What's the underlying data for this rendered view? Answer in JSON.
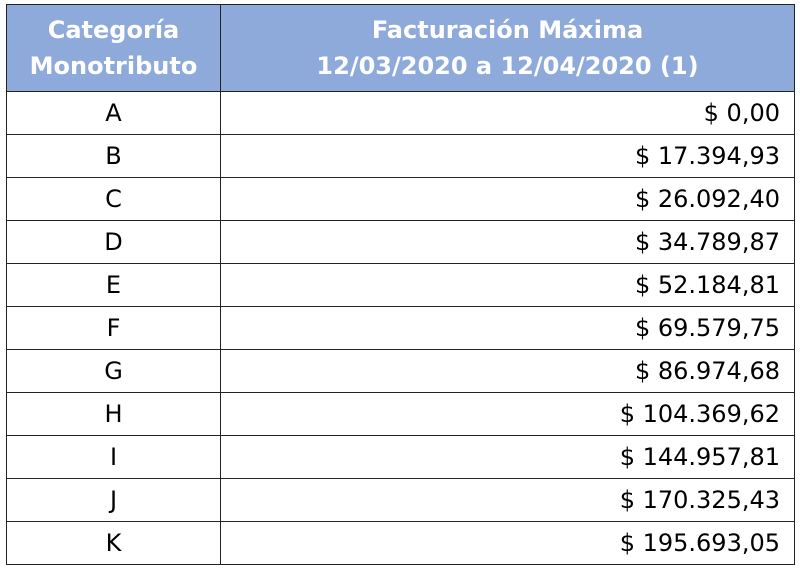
{
  "table": {
    "header": [
      [
        "Categoría",
        "Monotributo"
      ],
      [
        "Facturación Máxima",
        "12/03/2020 a 12/04/2020 (1)"
      ]
    ],
    "rows": [
      [
        "A",
        "$ 0,00"
      ],
      [
        "B",
        "$ 17.394,93"
      ],
      [
        "C",
        "$ 26.092,40"
      ],
      [
        "D",
        "$ 34.789,87"
      ],
      [
        "E",
        "$ 52.184,81"
      ],
      [
        "F",
        "$ 69.579,75"
      ],
      [
        "G",
        "$ 86.974,68"
      ],
      [
        "H",
        "$ 104.369,62"
      ],
      [
        "I",
        "$ 144.957,81"
      ],
      [
        "J",
        "$ 170.325,43"
      ],
      [
        "K",
        "$ 195.693,05"
      ]
    ]
  }
}
